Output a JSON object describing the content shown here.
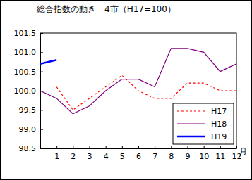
{
  "chart_data": {
    "type": "line",
    "title": "総合指数の動き　4市（H17=100）",
    "x_label": "月",
    "x": [
      0,
      1,
      2,
      3,
      4,
      5,
      6,
      7,
      8,
      9,
      10,
      11,
      12
    ],
    "xlim": [
      0,
      12
    ],
    "xticks": [
      1,
      2,
      3,
      4,
      5,
      6,
      7,
      8,
      9,
      10,
      11,
      12
    ],
    "ylim": [
      98.5,
      101.5
    ],
    "yticks": [
      98.5,
      {
        "value": 99,
        "label": "99.0"
      },
      99.5,
      {
        "value": 100,
        "label": "100.0"
      },
      100.5,
      {
        "value": 101,
        "label": "101.0"
      },
      101.5
    ],
    "grid": false,
    "legend": "lower right",
    "series": [
      {
        "name": "H17",
        "color": "#ff0000",
        "line_style": "dotted",
        "values": [
          null,
          100.1,
          99.5,
          99.8,
          100.1,
          100.4,
          100.0,
          99.8,
          99.8,
          100.2,
          100.2,
          100.0,
          100.0
        ]
      },
      {
        "name": "H18",
        "color": "#800080",
        "line_style": "solid",
        "values": [
          100.0,
          99.8,
          99.4,
          99.6,
          100.0,
          100.3,
          100.3,
          100.1,
          101.1,
          101.1,
          101.0,
          100.5,
          100.7
        ]
      },
      {
        "name": "H19",
        "color": "#0000ff",
        "line_style": "thick",
        "values": [
          100.7,
          100.8,
          null,
          null,
          null,
          null,
          null,
          null,
          null,
          null,
          null,
          null,
          null
        ]
      }
    ]
  }
}
